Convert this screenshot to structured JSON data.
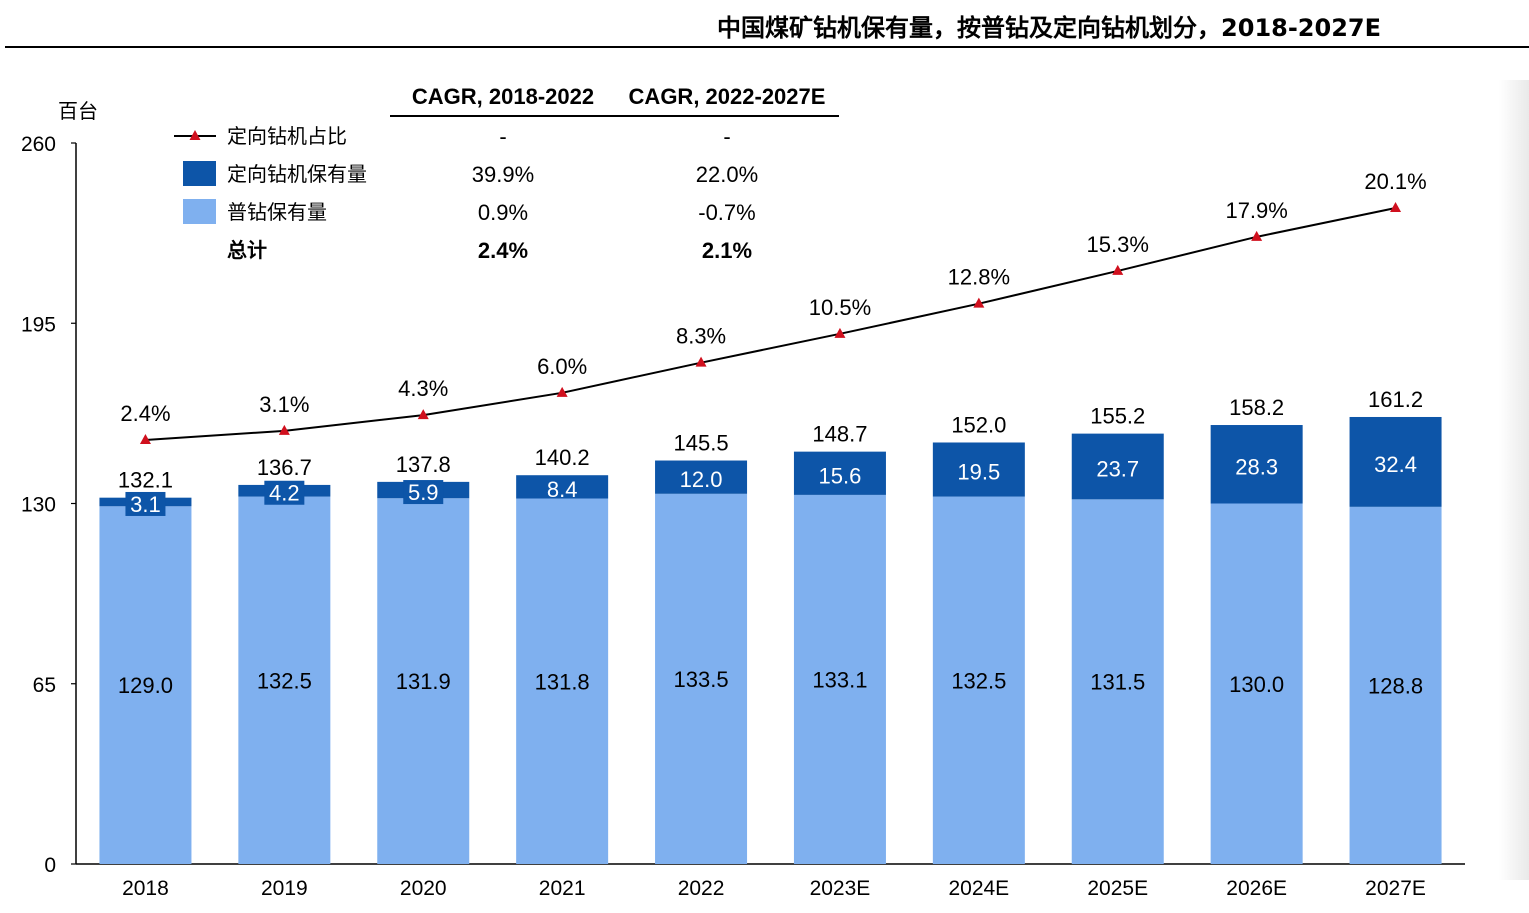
{
  "title": "中国煤矿钻机保有量，按普钻及定向钻机划分，2018-2027E",
  "colors": {
    "directional": "#0d55a8",
    "ordinary": "#7fb0ef",
    "line": "#000000",
    "marker": "#d0101e"
  },
  "chart_data": {
    "type": "bar",
    "stacked": true,
    "ylabel": "百台",
    "ylim": [
      0,
      260
    ],
    "yticks": [
      0,
      65,
      130,
      195,
      260
    ],
    "grid": false,
    "legend_position": "top-left",
    "categories": [
      "2018",
      "2019",
      "2020",
      "2021",
      "2022",
      "2023E",
      "2024E",
      "2025E",
      "2026E",
      "2027E"
    ],
    "series": [
      {
        "name": "普钻保有量",
        "values": [
          129.0,
          132.5,
          131.9,
          131.8,
          133.5,
          133.1,
          132.5,
          131.5,
          130.0,
          128.8
        ],
        "labels": [
          "129.0",
          "132.5",
          "131.9",
          "131.8",
          "133.5",
          "133.1",
          "132.5",
          "131.5",
          "130.0",
          "128.8"
        ]
      },
      {
        "name": "定向钻机保有量",
        "values": [
          3.1,
          4.2,
          5.9,
          8.4,
          12.0,
          15.6,
          19.5,
          23.7,
          28.3,
          32.4
        ],
        "labels": [
          "3.1",
          "4.2",
          "5.9",
          "8.4",
          "12.0",
          "15.6",
          "19.5",
          "23.7",
          "28.3",
          "32.4"
        ]
      }
    ],
    "totals": [
      132.1,
      136.7,
      137.8,
      140.2,
      145.5,
      148.7,
      152.0,
      155.2,
      158.2,
      161.2
    ],
    "total_labels": [
      "132.1",
      "136.7",
      "137.8",
      "140.2",
      "145.5",
      "148.7",
      "152.0",
      "155.2",
      "158.2",
      "161.2"
    ],
    "line": {
      "name": "定向钻机占比",
      "values": [
        2.4,
        3.1,
        4.3,
        6.0,
        8.3,
        10.5,
        12.8,
        15.3,
        17.9,
        20.1
      ],
      "labels": [
        "2.4%",
        "3.1%",
        "4.3%",
        "6.0%",
        "8.3%",
        "10.5%",
        "12.8%",
        "15.3%",
        "17.9%",
        "20.1%"
      ]
    }
  },
  "cagr_table": {
    "headers": [
      "CAGR, 2018-2022",
      "CAGR, 2022-2027E"
    ],
    "rows": [
      {
        "label": "定向钻机占比",
        "values": [
          "-",
          "-"
        ]
      },
      {
        "label": "定向钻机保有量",
        "values": [
          "39.9%",
          "22.0%"
        ]
      },
      {
        "label": "普钻保有量",
        "values": [
          "0.9%",
          "-0.7%"
        ]
      },
      {
        "label": "总计",
        "values": [
          "2.4%",
          "2.1%"
        ]
      }
    ]
  }
}
